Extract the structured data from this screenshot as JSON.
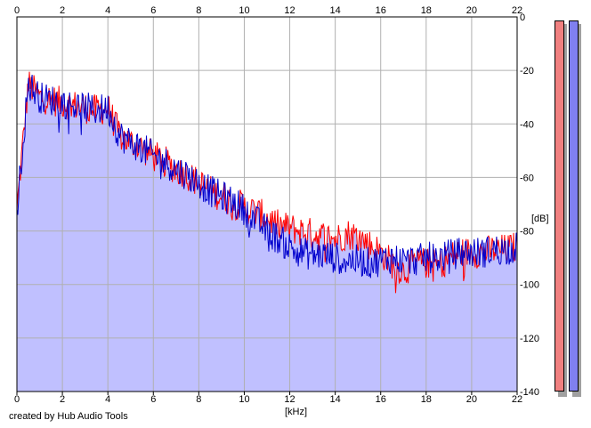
{
  "credit": "created by Hub Audio Tools",
  "colors": {
    "fill": "#c0c0ff",
    "channel_left": "#ff0000",
    "channel_right": "#0000cc",
    "meter_left": "#f08080",
    "meter_right": "#8080f0",
    "grid": "#b0b0b0"
  },
  "chart_data": {
    "type": "area",
    "xlabel": "[kHz]",
    "ylabel": "[dB]",
    "xlim": [
      0,
      22
    ],
    "ylim": [
      -140,
      0
    ],
    "x_ticks": [
      "0",
      "2",
      "4",
      "6",
      "8",
      "10",
      "12",
      "14",
      "16",
      "18",
      "20",
      "22"
    ],
    "y_ticks": [
      "0",
      "-20",
      "-40",
      "-60",
      "-80",
      "-100",
      "-120",
      "-140"
    ],
    "grid": true,
    "series": [
      {
        "channel": "left",
        "color": "#ff0000",
        "x": [
          0,
          0.5,
          1,
          1.5,
          2,
          2.5,
          3,
          3.5,
          4,
          4.5,
          5,
          5.5,
          6,
          6.5,
          7,
          7.5,
          8,
          8.5,
          9,
          9.5,
          10,
          10.5,
          11,
          11.5,
          12,
          12.5,
          13,
          13.5,
          14,
          14.5,
          15,
          15.5,
          16,
          16.5,
          17,
          17.5,
          18,
          18.5,
          19,
          19.5,
          20,
          20.5,
          21,
          21.5,
          22
        ],
        "values": [
          -72,
          -25,
          -30,
          -31,
          -32,
          -33,
          -34,
          -35,
          -34,
          -44,
          -47,
          -49,
          -52,
          -54,
          -57,
          -59,
          -62,
          -65,
          -67,
          -69,
          -71,
          -73,
          -75,
          -78,
          -79,
          -80,
          -81,
          -82,
          -83,
          -81,
          -82,
          -85,
          -88,
          -92,
          -95,
          -92,
          -92,
          -93,
          -90,
          -88,
          -88,
          -88,
          -87,
          -87,
          -86
        ]
      },
      {
        "channel": "right",
        "color": "#0000cc",
        "x": [
          0,
          0.5,
          1,
          1.5,
          2,
          2.5,
          3,
          3.5,
          4,
          4.5,
          5,
          5.5,
          6,
          6.5,
          7,
          7.5,
          8,
          8.5,
          9,
          9.5,
          10,
          10.5,
          11,
          11.5,
          12,
          12.5,
          13,
          13.5,
          14,
          14.5,
          15,
          15.5,
          16,
          16.5,
          17,
          17.5,
          18,
          18.5,
          19,
          19.5,
          20,
          20.5,
          21,
          21.5,
          22
        ],
        "values": [
          -72,
          -25,
          -30,
          -31,
          -32,
          -33,
          -34,
          -35,
          -34,
          -44,
          -47,
          -49,
          -52,
          -54,
          -57,
          -59,
          -62,
          -65,
          -67,
          -69,
          -72,
          -76,
          -80,
          -83,
          -86,
          -88,
          -89,
          -89,
          -90,
          -91,
          -91,
          -92,
          -91,
          -90,
          -91,
          -91,
          -90,
          -90,
          -89,
          -88,
          -88,
          -88,
          -87,
          -87,
          -86
        ]
      }
    ]
  },
  "meters": [
    {
      "channel": "left",
      "color": "#f08080",
      "level": 1.0
    },
    {
      "channel": "right",
      "color": "#8080f0",
      "level": 1.0
    }
  ]
}
